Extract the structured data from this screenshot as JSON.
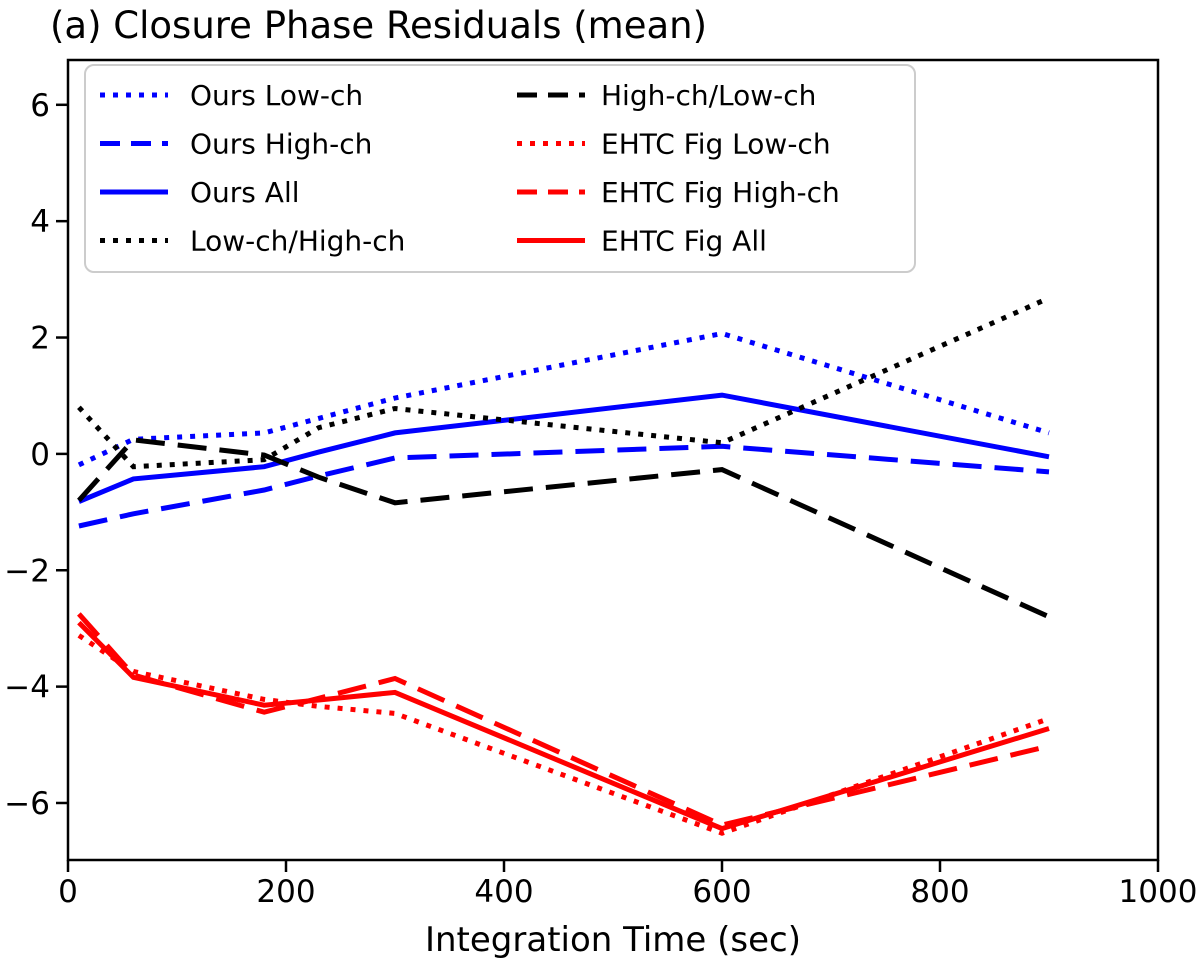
{
  "figure": {
    "background": "#ffffff"
  },
  "chart_data": {
    "type": "line",
    "title": "(a) Closure Phase Residuals (mean)",
    "xlabel": "Integration Time (sec)",
    "ylabel": "",
    "x": [
      10,
      60,
      180,
      230,
      300,
      600,
      900
    ],
    "xlim": [
      0,
      1000
    ],
    "ylim": [
      -6.98,
      6.77
    ],
    "x_ticks": [
      0,
      200,
      400,
      600,
      800,
      1000
    ],
    "x_tick_labels": [
      "0",
      "200",
      "400",
      "600",
      "800",
      "1000"
    ],
    "y_ticks": [
      6,
      4,
      2,
      0,
      -2,
      -4,
      -6
    ],
    "y_tick_labels": [
      "6",
      "4",
      "2",
      "0",
      "−2",
      "−4",
      "−6"
    ],
    "grid": false,
    "line_width": 5,
    "colors": {
      "ours": "#0000ff",
      "ratio": "#000000",
      "ehtc": "#ff0000"
    },
    "legend": {
      "position": "upper-left",
      "columns": 2,
      "entries": [
        "Ours Low-ch",
        "Ours High-ch",
        "Ours All",
        "Low-ch/High-ch",
        "High-ch/Low-ch",
        "EHTC Fig Low-ch",
        "EHTC Fig High-ch",
        "EHTC Fig All"
      ]
    },
    "series": [
      {
        "name": "Ours Low-ch",
        "color": "#0000ff",
        "style": "dotted",
        "values": [
          -0.19,
          0.25,
          0.36,
          0.61,
          0.96,
          2.07,
          0.36
        ]
      },
      {
        "name": "Ours High-ch",
        "color": "#0000ff",
        "style": "dashed",
        "values": [
          -1.24,
          -1.03,
          -0.62,
          -0.38,
          -0.07,
          0.13,
          -0.31
        ]
      },
      {
        "name": "Ours All",
        "color": "#0000ff",
        "style": "solid",
        "values": [
          -0.82,
          -0.43,
          -0.22,
          0.03,
          0.36,
          1.01,
          -0.05
        ]
      },
      {
        "name": "Low-ch/High-ch",
        "color": "#000000",
        "style": "dotted",
        "values": [
          0.8,
          -0.22,
          -0.1,
          0.45,
          0.78,
          0.19,
          2.68
        ]
      },
      {
        "name": "High-ch/Low-ch",
        "color": "#000000",
        "style": "dashed",
        "values": [
          -0.8,
          0.24,
          -0.02,
          -0.4,
          -0.84,
          -0.27,
          -2.8
        ]
      },
      {
        "name": "EHTC Fig Low-ch",
        "color": "#ff0000",
        "style": "dotted",
        "values": [
          -3.12,
          -3.74,
          -4.22,
          -4.34,
          -4.46,
          -6.52,
          -4.55
        ]
      },
      {
        "name": "EHTC Fig High-ch",
        "color": "#ff0000",
        "style": "dashed",
        "values": [
          -2.75,
          -3.8,
          -4.44,
          -4.2,
          -3.86,
          -6.38,
          -5.02
        ]
      },
      {
        "name": "EHTC Fig All",
        "color": "#ff0000",
        "style": "solid",
        "values": [
          -2.9,
          -3.84,
          -4.32,
          -4.23,
          -4.1,
          -6.44,
          -4.72
        ]
      }
    ]
  }
}
